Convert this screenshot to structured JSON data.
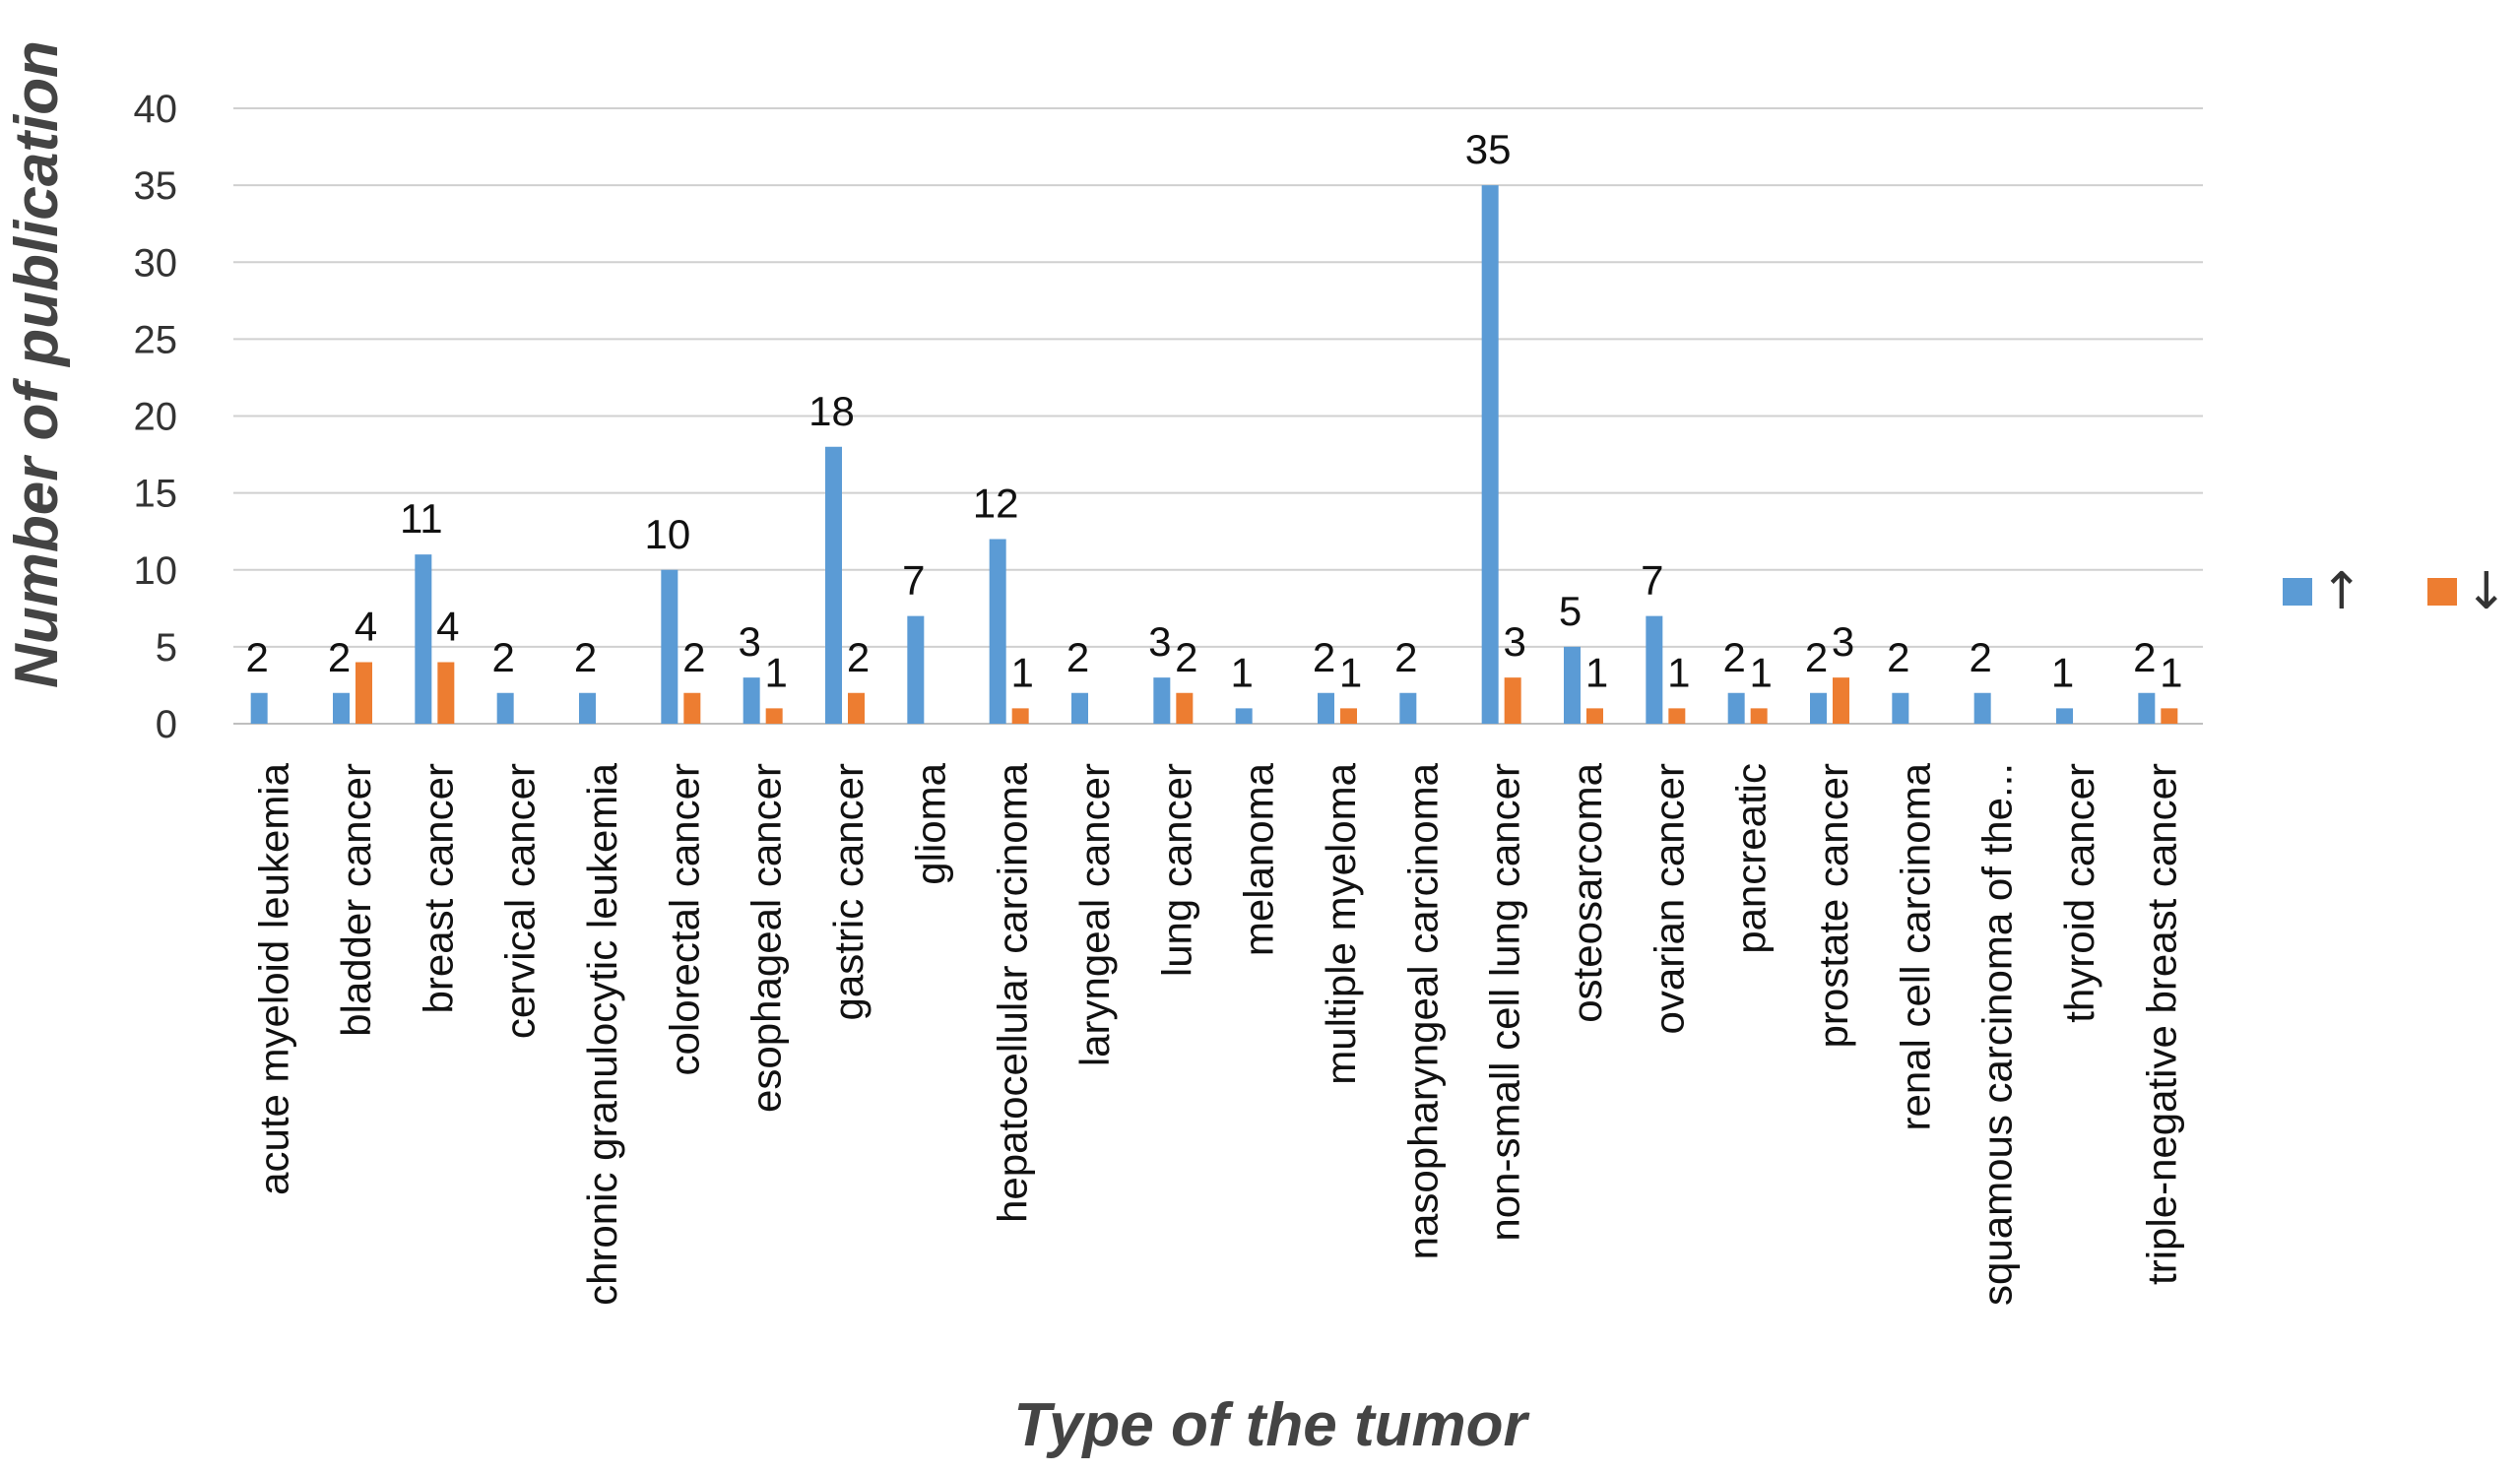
{
  "chart_data": {
    "type": "bar",
    "title": "",
    "xlabel": "Type of the tumor",
    "ylabel": "Number of publication",
    "ylim": [
      0,
      40
    ],
    "yticks": [
      0,
      5,
      10,
      15,
      20,
      25,
      30,
      35,
      40
    ],
    "grid": true,
    "legend_position": "right",
    "categories": [
      "acute myeloid leukemia",
      "bladder cancer",
      "breast cancer",
      "cervical cancer",
      "chronic granulocytic leukemia",
      "colorectal cancer",
      "esophageal cancer",
      "gastric cancer",
      "glioma",
      "hepatocellular carcinoma",
      "laryngeal cancer",
      "lung cancer",
      "melanoma",
      "multiple myeloma",
      "nasopharyngeal carcinoma",
      "non-small cell lung cancer",
      "osteosarcoma",
      "ovarian cancer",
      "pancreatic",
      "prostate cancer",
      "renal cell carcinoma",
      "squamous carcinoma of the...",
      "thyroid cancer",
      "triple-negative breast cancer"
    ],
    "series": [
      {
        "name": "↑",
        "color": "#5b9bd5",
        "values": [
          2,
          2,
          11,
          2,
          2,
          10,
          3,
          18,
          7,
          12,
          2,
          3,
          1,
          2,
          2,
          35,
          5,
          7,
          2,
          2,
          2,
          2,
          1,
          2
        ]
      },
      {
        "name": "↓",
        "color": "#ed7d31",
        "values": [
          null,
          4,
          4,
          null,
          null,
          2,
          1,
          2,
          null,
          1,
          null,
          2,
          null,
          1,
          null,
          3,
          1,
          1,
          1,
          3,
          null,
          null,
          null,
          1
        ]
      }
    ]
  }
}
